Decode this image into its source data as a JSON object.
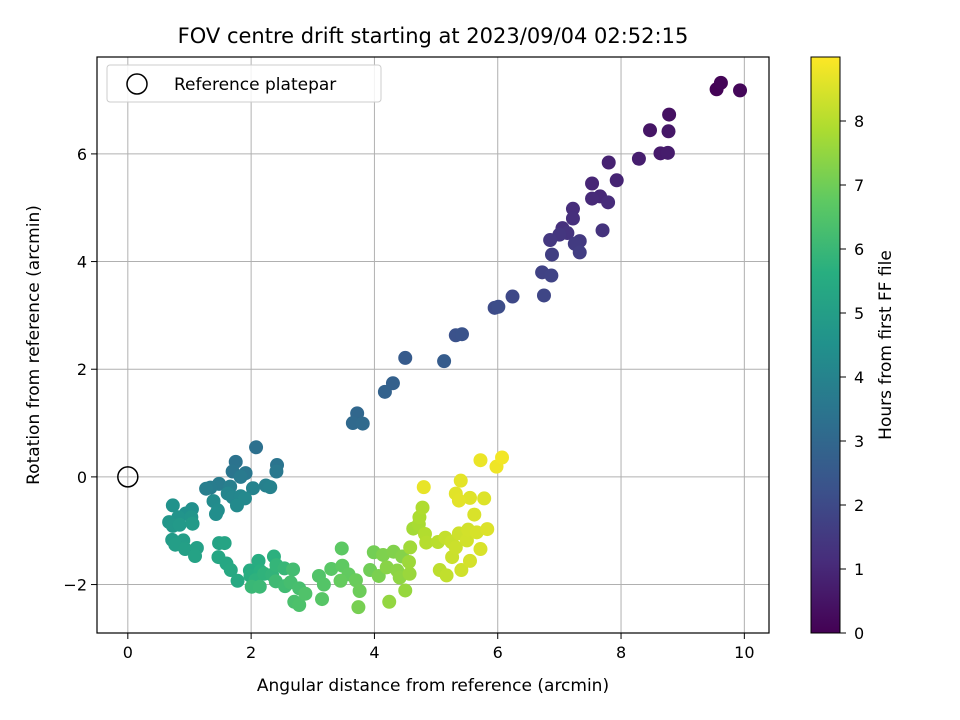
{
  "chart_data": {
    "type": "scatter",
    "title": "FOV centre drift starting at 2023/09/04 02:52:15",
    "xlabel": "Angular distance from reference (arcmin)",
    "ylabel": "Rotation from reference (arcmin)",
    "xlim": [
      -0.5,
      10.4
    ],
    "ylim": [
      -2.9,
      7.8
    ],
    "x_ticks": [
      0,
      2,
      4,
      6,
      8,
      10
    ],
    "y_ticks": [
      -2,
      0,
      2,
      4,
      6
    ],
    "grid": true,
    "legend": {
      "placement": "top-left",
      "entries": [
        "Reference platepar"
      ]
    },
    "reference_point": {
      "x": 0,
      "y": 0,
      "label": "Reference platepar",
      "marker": "open-circle"
    },
    "colorbar": {
      "label": "Hours from first FF file",
      "min": 0,
      "max": 9,
      "ticks": [
        0,
        1,
        2,
        3,
        4,
        5,
        6,
        7,
        8
      ],
      "colormap": "viridis"
    },
    "points": [
      {
        "x": 9.55,
        "y": 7.2,
        "c": 0.05
      },
      {
        "x": 9.62,
        "y": 7.32,
        "c": 0.1
      },
      {
        "x": 9.93,
        "y": 7.18,
        "c": 0.15
      },
      {
        "x": 8.78,
        "y": 6.73,
        "c": 0.4
      },
      {
        "x": 8.47,
        "y": 6.44,
        "c": 0.5
      },
      {
        "x": 8.77,
        "y": 6.42,
        "c": 0.55
      },
      {
        "x": 8.64,
        "y": 6.01,
        "c": 0.65
      },
      {
        "x": 8.76,
        "y": 6.02,
        "c": 0.7
      },
      {
        "x": 8.29,
        "y": 5.91,
        "c": 0.75
      },
      {
        "x": 7.8,
        "y": 5.84,
        "c": 0.85
      },
      {
        "x": 7.93,
        "y": 5.51,
        "c": 0.9
      },
      {
        "x": 7.53,
        "y": 5.45,
        "c": 0.95
      },
      {
        "x": 7.66,
        "y": 5.21,
        "c": 1.0
      },
      {
        "x": 7.53,
        "y": 5.17,
        "c": 1.05
      },
      {
        "x": 7.79,
        "y": 5.1,
        "c": 1.1
      },
      {
        "x": 7.22,
        "y": 4.98,
        "c": 1.15
      },
      {
        "x": 7.22,
        "y": 4.8,
        "c": 1.2
      },
      {
        "x": 7.05,
        "y": 4.62,
        "c": 1.25
      },
      {
        "x": 7.7,
        "y": 4.58,
        "c": 1.3
      },
      {
        "x": 7.13,
        "y": 4.53,
        "c": 1.35
      },
      {
        "x": 7.0,
        "y": 4.5,
        "c": 1.4
      },
      {
        "x": 6.85,
        "y": 4.4,
        "c": 1.45
      },
      {
        "x": 7.33,
        "y": 4.38,
        "c": 1.5
      },
      {
        "x": 7.25,
        "y": 4.33,
        "c": 1.55
      },
      {
        "x": 7.33,
        "y": 4.17,
        "c": 1.6
      },
      {
        "x": 6.88,
        "y": 4.13,
        "c": 1.65
      },
      {
        "x": 6.72,
        "y": 3.8,
        "c": 1.75
      },
      {
        "x": 6.87,
        "y": 3.74,
        "c": 1.8
      },
      {
        "x": 6.75,
        "y": 3.37,
        "c": 1.9
      },
      {
        "x": 6.24,
        "y": 3.35,
        "c": 1.95
      },
      {
        "x": 5.95,
        "y": 3.14,
        "c": 2.05
      },
      {
        "x": 6.01,
        "y": 3.16,
        "c": 2.1
      },
      {
        "x": 5.32,
        "y": 2.63,
        "c": 2.25
      },
      {
        "x": 5.42,
        "y": 2.65,
        "c": 2.3
      },
      {
        "x": 4.5,
        "y": 2.21,
        "c": 2.55
      },
      {
        "x": 5.13,
        "y": 2.15,
        "c": 2.6
      },
      {
        "x": 4.3,
        "y": 1.74,
        "c": 2.75
      },
      {
        "x": 4.17,
        "y": 1.58,
        "c": 2.8
      },
      {
        "x": 3.72,
        "y": 1.18,
        "c": 3.0
      },
      {
        "x": 3.65,
        "y": 1.0,
        "c": 3.05
      },
      {
        "x": 3.81,
        "y": 0.99,
        "c": 3.1
      },
      {
        "x": 2.08,
        "y": 0.55,
        "c": 3.3
      },
      {
        "x": 1.75,
        "y": 0.28,
        "c": 3.4
      },
      {
        "x": 2.42,
        "y": 0.22,
        "c": 3.45
      },
      {
        "x": 1.7,
        "y": 0.1,
        "c": 3.5
      },
      {
        "x": 1.91,
        "y": 0.07,
        "c": 3.55
      },
      {
        "x": 2.41,
        "y": 0.1,
        "c": 3.6
      },
      {
        "x": 1.83,
        "y": 0.0,
        "c": 3.65
      },
      {
        "x": 1.48,
        "y": -0.13,
        "c": 3.7
      },
      {
        "x": 1.34,
        "y": -0.2,
        "c": 3.75
      },
      {
        "x": 1.27,
        "y": -0.22,
        "c": 3.8
      },
      {
        "x": 1.66,
        "y": -0.18,
        "c": 3.85
      },
      {
        "x": 2.24,
        "y": -0.16,
        "c": 3.9
      },
      {
        "x": 2.31,
        "y": -0.19,
        "c": 3.95
      },
      {
        "x": 2.03,
        "y": -0.21,
        "c": 4.0
      },
      {
        "x": 1.62,
        "y": -0.31,
        "c": 4.05
      },
      {
        "x": 1.7,
        "y": -0.38,
        "c": 4.1
      },
      {
        "x": 1.83,
        "y": -0.36,
        "c": 4.15
      },
      {
        "x": 1.9,
        "y": -0.4,
        "c": 4.2
      },
      {
        "x": 1.77,
        "y": -0.53,
        "c": 4.25
      },
      {
        "x": 1.39,
        "y": -0.45,
        "c": 4.3
      },
      {
        "x": 1.46,
        "y": -0.62,
        "c": 4.35
      },
      {
        "x": 1.43,
        "y": -0.69,
        "c": 4.4
      },
      {
        "x": 1.04,
        "y": -0.6,
        "c": 4.45
      },
      {
        "x": 0.94,
        "y": -0.68,
        "c": 4.5
      },
      {
        "x": 0.73,
        "y": -0.53,
        "c": 4.55
      },
      {
        "x": 0.82,
        "y": -0.75,
        "c": 4.6
      },
      {
        "x": 1.03,
        "y": -0.75,
        "c": 4.65
      },
      {
        "x": 0.67,
        "y": -0.84,
        "c": 4.7
      },
      {
        "x": 0.73,
        "y": -0.91,
        "c": 4.75
      },
      {
        "x": 0.84,
        "y": -0.89,
        "c": 4.8
      },
      {
        "x": 1.05,
        "y": -0.87,
        "c": 4.85
      },
      {
        "x": 0.72,
        "y": -1.17,
        "c": 4.9
      },
      {
        "x": 0.9,
        "y": -1.18,
        "c": 4.95
      },
      {
        "x": 0.77,
        "y": -1.26,
        "c": 5.0
      },
      {
        "x": 0.93,
        "y": -1.34,
        "c": 5.05
      },
      {
        "x": 1.12,
        "y": -1.32,
        "c": 5.1
      },
      {
        "x": 1.09,
        "y": -1.47,
        "c": 5.15
      },
      {
        "x": 1.48,
        "y": -1.23,
        "c": 5.2
      },
      {
        "x": 1.57,
        "y": -1.23,
        "c": 5.25
      },
      {
        "x": 1.47,
        "y": -1.49,
        "c": 5.3
      },
      {
        "x": 1.6,
        "y": -1.61,
        "c": 5.35
      },
      {
        "x": 1.67,
        "y": -1.73,
        "c": 5.4
      },
      {
        "x": 1.78,
        "y": -1.93,
        "c": 5.45
      },
      {
        "x": 1.98,
        "y": -1.74,
        "c": 5.5
      },
      {
        "x": 2.12,
        "y": -1.56,
        "c": 5.55
      },
      {
        "x": 1.99,
        "y": -1.84,
        "c": 5.6
      },
      {
        "x": 2.15,
        "y": -1.75,
        "c": 5.65
      },
      {
        "x": 2.37,
        "y": -1.48,
        "c": 5.7
      },
      {
        "x": 2.07,
        "y": -1.92,
        "c": 5.75
      },
      {
        "x": 2.21,
        "y": -1.8,
        "c": 5.8
      },
      {
        "x": 2.34,
        "y": -1.82,
        "c": 5.85
      },
      {
        "x": 2.41,
        "y": -1.64,
        "c": 5.9
      },
      {
        "x": 2.54,
        "y": -1.7,
        "c": 5.95
      },
      {
        "x": 2.01,
        "y": -2.04,
        "c": 6.0
      },
      {
        "x": 2.14,
        "y": -2.04,
        "c": 6.05
      },
      {
        "x": 2.4,
        "y": -1.94,
        "c": 6.1
      },
      {
        "x": 2.55,
        "y": -2.03,
        "c": 6.15
      },
      {
        "x": 2.68,
        "y": -1.72,
        "c": 6.2
      },
      {
        "x": 2.64,
        "y": -1.96,
        "c": 6.25
      },
      {
        "x": 2.78,
        "y": -2.07,
        "c": 6.3
      },
      {
        "x": 2.7,
        "y": -2.32,
        "c": 6.35
      },
      {
        "x": 2.78,
        "y": -2.38,
        "c": 6.4
      },
      {
        "x": 2.88,
        "y": -2.17,
        "c": 6.45
      },
      {
        "x": 3.1,
        "y": -1.84,
        "c": 6.5
      },
      {
        "x": 3.18,
        "y": -2.0,
        "c": 6.55
      },
      {
        "x": 3.15,
        "y": -2.27,
        "c": 6.6
      },
      {
        "x": 3.3,
        "y": -1.71,
        "c": 6.65
      },
      {
        "x": 3.47,
        "y": -1.33,
        "c": 6.7
      },
      {
        "x": 3.48,
        "y": -1.65,
        "c": 6.75
      },
      {
        "x": 3.58,
        "y": -1.81,
        "c": 6.8
      },
      {
        "x": 3.45,
        "y": -1.93,
        "c": 6.85
      },
      {
        "x": 3.7,
        "y": -1.92,
        "c": 6.9
      },
      {
        "x": 3.76,
        "y": -2.12,
        "c": 6.95
      },
      {
        "x": 3.93,
        "y": -1.73,
        "c": 7.0
      },
      {
        "x": 3.99,
        "y": -1.4,
        "c": 7.05
      },
      {
        "x": 3.74,
        "y": -2.42,
        "c": 7.1
      },
      {
        "x": 4.07,
        "y": -1.84,
        "c": 7.15
      },
      {
        "x": 4.14,
        "y": -1.45,
        "c": 7.2
      },
      {
        "x": 4.31,
        "y": -1.39,
        "c": 7.25
      },
      {
        "x": 4.45,
        "y": -1.48,
        "c": 7.3
      },
      {
        "x": 4.2,
        "y": -1.68,
        "c": 7.35
      },
      {
        "x": 4.37,
        "y": -1.74,
        "c": 7.4
      },
      {
        "x": 4.41,
        "y": -1.87,
        "c": 7.45
      },
      {
        "x": 4.24,
        "y": -2.32,
        "c": 7.5
      },
      {
        "x": 4.5,
        "y": -2.11,
        "c": 7.55
      },
      {
        "x": 4.57,
        "y": -1.8,
        "c": 7.6
      },
      {
        "x": 4.56,
        "y": -1.58,
        "c": 7.65
      },
      {
        "x": 4.58,
        "y": -1.31,
        "c": 7.7
      },
      {
        "x": 4.63,
        "y": -0.96,
        "c": 7.75
      },
      {
        "x": 4.72,
        "y": -0.88,
        "c": 7.8
      },
      {
        "x": 4.73,
        "y": -0.75,
        "c": 7.85
      },
      {
        "x": 4.78,
        "y": -0.57,
        "c": 7.9
      },
      {
        "x": 4.82,
        "y": -1.06,
        "c": 7.95
      },
      {
        "x": 4.84,
        "y": -1.22,
        "c": 8.0
      },
      {
        "x": 5.03,
        "y": -1.21,
        "c": 8.05
      },
      {
        "x": 5.06,
        "y": -1.73,
        "c": 8.1
      },
      {
        "x": 5.17,
        "y": -1.83,
        "c": 8.15
      },
      {
        "x": 5.15,
        "y": -1.13,
        "c": 8.2
      },
      {
        "x": 5.25,
        "y": -1.21,
        "c": 8.25
      },
      {
        "x": 5.26,
        "y": -1.49,
        "c": 8.28
      },
      {
        "x": 5.32,
        "y": -1.31,
        "c": 8.3
      },
      {
        "x": 5.37,
        "y": -1.05,
        "c": 8.33
      },
      {
        "x": 5.41,
        "y": -1.73,
        "c": 8.35
      },
      {
        "x": 5.5,
        "y": -1.18,
        "c": 8.38
      },
      {
        "x": 5.52,
        "y": -0.98,
        "c": 8.4
      },
      {
        "x": 5.55,
        "y": -1.56,
        "c": 8.43
      },
      {
        "x": 5.66,
        "y": -1.03,
        "c": 8.45
      },
      {
        "x": 5.72,
        "y": -1.34,
        "c": 8.48
      },
      {
        "x": 5.62,
        "y": -0.7,
        "c": 8.5
      },
      {
        "x": 5.83,
        "y": -0.97,
        "c": 8.53
      },
      {
        "x": 5.78,
        "y": -0.4,
        "c": 8.55
      },
      {
        "x": 5.55,
        "y": -0.39,
        "c": 8.58
      },
      {
        "x": 5.32,
        "y": -0.31,
        "c": 8.6
      },
      {
        "x": 5.37,
        "y": -0.44,
        "c": 8.63
      },
      {
        "x": 5.4,
        "y": -0.07,
        "c": 8.65
      },
      {
        "x": 4.8,
        "y": -0.19,
        "c": 8.7
      },
      {
        "x": 5.72,
        "y": 0.31,
        "c": 8.75
      },
      {
        "x": 5.98,
        "y": 0.19,
        "c": 8.8
      },
      {
        "x": 6.07,
        "y": 0.36,
        "c": 8.85
      }
    ]
  }
}
